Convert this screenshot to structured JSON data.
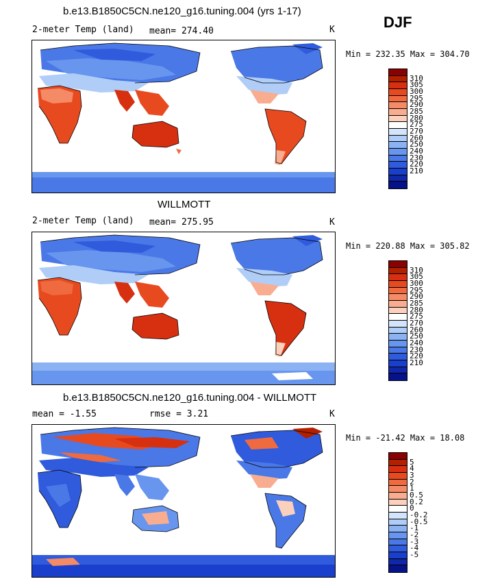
{
  "season": "DJF",
  "panels": [
    {
      "title": "b.e13.B1850C5CN.ne120_g16.tuning.004 (yrs 1-17)",
      "left_label": "2-meter Temp (land)",
      "center_label": "mean= 274.40",
      "unit": "K",
      "minmax": "Min = 232.35 Max = 304.70",
      "colors": [
        "#8b0000",
        "#b22000",
        "#d63010",
        "#e84a20",
        "#f06a40",
        "#f58a66",
        "#f9ad90",
        "#fbd0bc",
        "#ffffff",
        "#d4e4fb",
        "#b0cdf7",
        "#8bb2f3",
        "#6895ee",
        "#4a78e6",
        "#2f5bdc",
        "#1a3fcc",
        "#0f27a8",
        "#06128a"
      ],
      "labels": [
        "310",
        "305",
        "300",
        "295",
        "290",
        "285",
        "280",
        "275",
        "270",
        "260",
        "250",
        "240",
        "230",
        "220",
        "210"
      ]
    },
    {
      "title": "WILLMOTT",
      "left_label": "2-meter Temp (land)",
      "center_label": "mean= 275.95",
      "unit": "K",
      "minmax": "Min = 220.88 Max = 305.82",
      "colors": [
        "#8b0000",
        "#b22000",
        "#d63010",
        "#e84a20",
        "#f06a40",
        "#f58a66",
        "#f9ad90",
        "#fbd0bc",
        "#ffffff",
        "#d4e4fb",
        "#b0cdf7",
        "#8bb2f3",
        "#6895ee",
        "#4a78e6",
        "#2f5bdc",
        "#1a3fcc",
        "#0f27a8",
        "#06128a"
      ],
      "labels": [
        "310",
        "305",
        "300",
        "295",
        "290",
        "285",
        "280",
        "275",
        "270",
        "260",
        "250",
        "240",
        "230",
        "220",
        "210"
      ]
    },
    {
      "title": "b.e13.B1850C5CN.ne120_g16.tuning.004 - WILLMOTT",
      "left_label": "mean =   -1.55",
      "center_label": "rmse =    3.21",
      "unit": "K",
      "minmax": "Min = -21.42 Max =  18.08",
      "colors": [
        "#8b0000",
        "#b22000",
        "#d63010",
        "#e84a20",
        "#f06a40",
        "#f58a66",
        "#f9ad90",
        "#fbd0bc",
        "#ffffff",
        "#d4e4fb",
        "#b0cdf7",
        "#8bb2f3",
        "#6895ee",
        "#4a78e6",
        "#2f5bdc",
        "#1a3fcc",
        "#0f27a8",
        "#06128a"
      ],
      "labels": [
        "5",
        "4",
        "3",
        "2",
        "1",
        "0.5",
        "0.2",
        "0",
        "-0.2",
        "-0.5",
        "-1",
        "-2",
        "-3",
        "-4",
        "-5"
      ]
    }
  ]
}
